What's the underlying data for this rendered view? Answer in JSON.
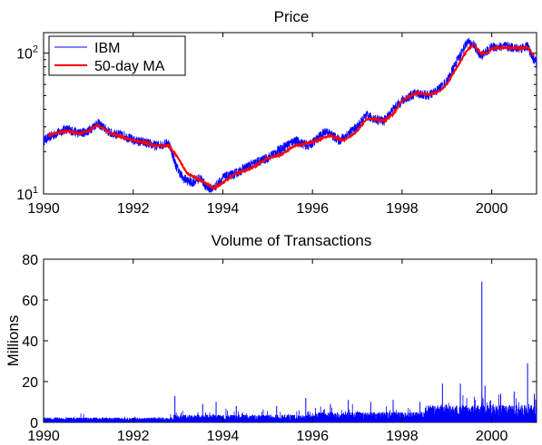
{
  "chart_data": [
    {
      "type": "line",
      "title": "Price",
      "xlabel": "",
      "ylabel": "",
      "y_scale": "log",
      "xlim": [
        1990,
        2001
      ],
      "ylim": [
        10,
        140
      ],
      "x_tick_labels": [
        "1990",
        "1992",
        "1994",
        "1996",
        "1998",
        "2000"
      ],
      "y_ticks": [
        {
          "value": 10,
          "base": "10",
          "exp": "1"
        },
        {
          "value": 100,
          "base": "10",
          "exp": "2"
        }
      ],
      "legend": {
        "placement": "top-left"
      },
      "series": [
        {
          "name": "IBM",
          "color": "#0000ff",
          "x": [
            1990.0,
            1990.3,
            1990.5,
            1990.8,
            1991.0,
            1991.2,
            1991.5,
            1991.8,
            1992.0,
            1992.3,
            1992.5,
            1992.8,
            1992.95,
            1993.1,
            1993.3,
            1993.5,
            1993.65,
            1993.8,
            1994.0,
            1994.3,
            1994.6,
            1995.0,
            1995.3,
            1995.6,
            1995.9,
            1996.0,
            1996.3,
            1996.6,
            1997.0,
            1997.2,
            1997.4,
            1997.6,
            1997.8,
            1998.0,
            1998.3,
            1998.6,
            1998.8,
            1999.0,
            1999.2,
            1999.45,
            1999.6,
            1999.75,
            1999.9,
            2000.0,
            2000.3,
            2000.6,
            2000.8,
            2000.9,
            2001.0
          ],
          "y": [
            24,
            27,
            29,
            27,
            28,
            32,
            27,
            26,
            24,
            23,
            22,
            23,
            16,
            13,
            12,
            13,
            11,
            11,
            13,
            14,
            16,
            18,
            21,
            24,
            22,
            23,
            28,
            24,
            30,
            36,
            34,
            33,
            40,
            46,
            52,
            50,
            55,
            63,
            85,
            120,
            115,
            95,
            104,
            110,
            112,
            108,
            112,
            95,
            85
          ]
        },
        {
          "name": "50-day MA",
          "color": "#ff0000",
          "x": [
            1990.1,
            1990.3,
            1990.5,
            1990.8,
            1991.0,
            1991.2,
            1991.5,
            1991.8,
            1992.0,
            1992.3,
            1992.5,
            1992.8,
            1993.0,
            1993.2,
            1993.4,
            1993.6,
            1993.8,
            1994.0,
            1994.3,
            1994.6,
            1995.0,
            1995.3,
            1995.6,
            1995.9,
            1996.1,
            1996.4,
            1996.7,
            1997.0,
            1997.2,
            1997.4,
            1997.6,
            1997.8,
            1998.0,
            1998.3,
            1998.6,
            1998.8,
            1999.0,
            1999.2,
            1999.45,
            1999.6,
            1999.75,
            1999.9,
            2000.0,
            2000.3,
            2000.6,
            2000.8,
            2000.95
          ],
          "y": [
            26,
            27,
            28,
            27,
            28,
            31,
            27,
            25,
            24,
            23,
            22,
            22,
            18,
            14,
            13,
            12,
            11,
            12,
            14,
            15,
            18,
            19,
            22,
            23,
            24,
            26,
            24,
            28,
            34,
            34,
            33,
            37,
            46,
            52,
            51,
            53,
            60,
            77,
            105,
            115,
            100,
            100,
            108,
            110,
            108,
            110,
            95
          ]
        }
      ]
    },
    {
      "type": "bar",
      "title": "Volume of Transactions",
      "xlabel": "",
      "ylabel": "Millions",
      "xlim": [
        1990,
        2001
      ],
      "ylim": [
        0,
        80
      ],
      "x_tick_labels": [
        "1990",
        "1992",
        "1994",
        "1996",
        "1998",
        "2000"
      ],
      "y_tick_labels": [
        "0",
        "20",
        "40",
        "60",
        "80"
      ],
      "color": "#0000ff",
      "spikes": [
        {
          "x": 1992.93,
          "y": 13
        },
        {
          "x": 1993.55,
          "y": 9
        },
        {
          "x": 1993.85,
          "y": 10
        },
        {
          "x": 1994.3,
          "y": 8
        },
        {
          "x": 1995.2,
          "y": 8
        },
        {
          "x": 1995.85,
          "y": 12
        },
        {
          "x": 1996.4,
          "y": 9
        },
        {
          "x": 1996.8,
          "y": 11
        },
        {
          "x": 1997.3,
          "y": 10
        },
        {
          "x": 1997.8,
          "y": 11
        },
        {
          "x": 1998.4,
          "y": 10
        },
        {
          "x": 1998.9,
          "y": 19
        },
        {
          "x": 1999.3,
          "y": 19
        },
        {
          "x": 1999.78,
          "y": 69
        },
        {
          "x": 1999.85,
          "y": 18
        },
        {
          "x": 2000.2,
          "y": 14
        },
        {
          "x": 2000.5,
          "y": 15
        },
        {
          "x": 2000.8,
          "y": 29
        },
        {
          "x": 2000.95,
          "y": 14
        }
      ]
    }
  ]
}
